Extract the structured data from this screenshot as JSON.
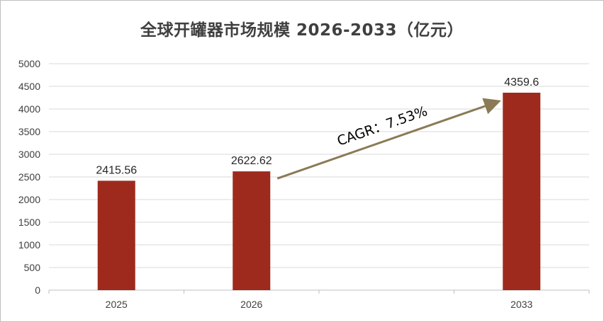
{
  "chart_data": {
    "type": "bar",
    "title": "全球开罐器市场规模 2026-2033（亿元）",
    "categories": [
      "2025",
      "2026",
      "",
      "2033"
    ],
    "values": [
      2415.56,
      2622.62,
      null,
      4359.6
    ],
    "data_labels": [
      "2415.56",
      "2622.62",
      "",
      "4359.6"
    ],
    "ylim": [
      0,
      5000
    ],
    "yticks": [
      0,
      500,
      1000,
      1500,
      2000,
      2500,
      3000,
      3500,
      4000,
      4500,
      5000
    ],
    "grid": true,
    "legend": "none",
    "bar_color": "#9e2a1e",
    "annotation": {
      "text": "CAGR：7.53%",
      "from_category": "2026",
      "to_category": "2033",
      "arrow_color": "#8b7a56"
    }
  }
}
